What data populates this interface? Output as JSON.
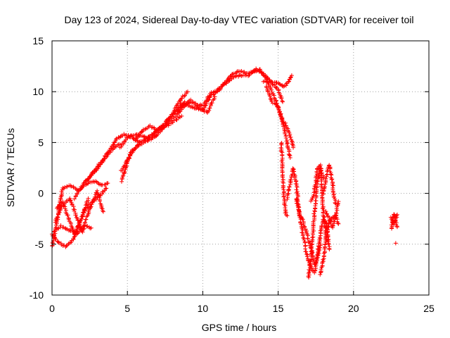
{
  "chart_data": {
    "type": "scatter",
    "title": "Day 123 of 2024, Sidereal Day-to-day VTEC variation (SDTVAR) for receiver toil",
    "xlabel": "GPS time / hours",
    "ylabel": "SDTVAR / TECUs",
    "xlim": [
      0,
      25
    ],
    "ylim": [
      -10,
      15
    ],
    "x_ticks": [
      "0",
      "5",
      "10",
      "15",
      "20",
      "25"
    ],
    "y_ticks": [
      "-10",
      "-5",
      "0",
      "5",
      "10",
      "15"
    ],
    "grid": true,
    "marker": "+",
    "color": "#ff0000",
    "traces": [
      {
        "x": [
          0.0,
          0.3,
          0.7,
          1.2,
          1.8,
          2.3,
          2.8,
          3.3,
          3.7
        ],
        "y": [
          -5.2,
          -3.0,
          0.5,
          0.8,
          0.3,
          1.0,
          1.2,
          0.8,
          1.0
        ]
      },
      {
        "x": [
          0.0,
          0.4,
          0.9,
          1.4,
          1.8,
          2.2,
          2.7,
          3.2,
          3.6
        ],
        "y": [
          -4.0,
          -4.8,
          -5.2,
          -4.6,
          -3.0,
          -1.5,
          -0.8,
          -0.2,
          0.5
        ]
      },
      {
        "x": [
          0.1,
          0.6,
          1.1,
          1.6,
          2.1,
          2.6
        ],
        "y": [
          -3.8,
          -3.2,
          -3.6,
          -4.0,
          -3.2,
          -3.4
        ]
      },
      {
        "x": [
          0.2,
          0.7,
          1.2,
          1.6,
          2.0,
          2.5,
          3.0,
          3.4
        ],
        "y": [
          -2.8,
          -1.2,
          -0.5,
          -2.2,
          -3.8,
          -1.5,
          0.2,
          -1.8
        ]
      },
      {
        "x": [
          0.3,
          0.7,
          1.1,
          1.5,
          2.0,
          2.4
        ],
        "y": [
          -1.5,
          -0.8,
          -2.5,
          -4.0,
          -2.2,
          -0.5
        ]
      },
      {
        "x": [
          1.5,
          2.0,
          2.6,
          3.1,
          3.6,
          4.0,
          4.3,
          4.8,
          5.3,
          5.8
        ],
        "y": [
          -0.5,
          0.8,
          1.8,
          2.8,
          3.8,
          4.6,
          5.4,
          5.8,
          5.5,
          5.0
        ]
      },
      {
        "x": [
          2.2,
          2.8,
          3.3,
          3.8,
          4.2,
          4.5
        ],
        "y": [
          1.2,
          2.0,
          3.0,
          4.0,
          4.6,
          4.8
        ]
      },
      {
        "x": [
          4.5,
          5.0,
          5.5,
          6.0,
          6.5,
          7.0
        ],
        "y": [
          4.5,
          5.5,
          5.8,
          5.6,
          5.4,
          5.8
        ]
      },
      {
        "x": [
          4.6,
          5.2,
          5.8,
          6.4,
          7.0,
          7.6,
          8.2,
          8.8,
          9.2
        ],
        "y": [
          1.2,
          4.0,
          4.8,
          5.2,
          5.8,
          6.8,
          7.6,
          8.6,
          9.2
        ]
      },
      {
        "x": [
          4.6,
          5.2,
          5.8,
          6.3,
          6.8,
          7.3,
          7.8,
          8.3,
          8.8
        ],
        "y": [
          2.2,
          3.8,
          5.0,
          5.4,
          6.0,
          6.6,
          7.4,
          8.2,
          9.0
        ]
      },
      {
        "x": [
          5.5,
          6.0,
          6.5,
          7.0,
          7.5,
          8.0,
          8.5,
          9.0
        ],
        "y": [
          5.2,
          6.2,
          6.6,
          6.2,
          6.8,
          7.8,
          9.2,
          10.0
        ]
      },
      {
        "x": [
          6.3,
          6.8,
          7.3,
          7.8,
          8.2,
          8.6
        ],
        "y": [
          5.4,
          6.0,
          6.4,
          6.8,
          7.2,
          7.6
        ]
      },
      {
        "x": [
          8.5,
          9.0,
          9.5,
          10.0,
          10.5,
          11.0,
          11.5,
          12.0,
          12.5,
          13.0,
          13.5,
          13.8
        ],
        "y": [
          8.8,
          8.6,
          8.4,
          8.2,
          9.6,
          10.0,
          11.0,
          11.8,
          12.0,
          11.8,
          12.0,
          12.2
        ]
      },
      {
        "x": [
          8.3,
          8.8,
          9.3,
          9.8,
          10.3,
          10.8
        ],
        "y": [
          8.0,
          8.8,
          9.0,
          8.4,
          7.9,
          9.5
        ]
      },
      {
        "x": [
          9.5,
          10.0,
          10.5,
          11.0,
          11.5,
          12.0,
          12.5,
          13.0,
          13.5,
          14.0,
          14.5,
          15.0,
          15.3
        ],
        "y": [
          8.8,
          8.6,
          9.8,
          10.2,
          10.8,
          11.4,
          11.6,
          11.6,
          12.2,
          11.8,
          11.0,
          10.2,
          9.0
        ]
      },
      {
        "x": [
          13.8,
          14.2,
          14.6,
          15.0,
          15.3,
          15.6,
          15.8
        ],
        "y": [
          12.0,
          11.4,
          10.0,
          8.5,
          7.0,
          5.0,
          3.5
        ]
      },
      {
        "x": [
          14.2,
          14.6,
          15.0,
          15.3,
          15.6,
          15.9,
          16.0
        ],
        "y": [
          10.5,
          9.0,
          8.5,
          7.2,
          6.5,
          5.2,
          4.5
        ]
      },
      {
        "x": [
          14.0,
          14.5,
          15.0,
          15.3,
          15.5,
          15.7,
          15.9
        ],
        "y": [
          11.0,
          11.0,
          10.8,
          10.5,
          10.6,
          11.0,
          11.6
        ]
      },
      {
        "x": [
          15.2,
          15.3,
          15.4,
          15.5,
          15.6
        ],
        "y": [
          5.0,
          2.0,
          -0.5,
          -2.0,
          -2.2
        ]
      },
      {
        "x": [
          15.6,
          15.8,
          16.0,
          16.2,
          16.4,
          16.6,
          16.8
        ],
        "y": [
          -0.5,
          1.0,
          2.5,
          1.0,
          -2.0,
          -3.8,
          -5.2
        ]
      },
      {
        "x": [
          16.2,
          16.4,
          16.6,
          16.8,
          17.0,
          17.2,
          17.4,
          17.6,
          17.8
        ],
        "y": [
          -0.5,
          -2.0,
          -2.5,
          -3.5,
          -4.5,
          -5.5,
          -7.0,
          -6.5,
          -5.0
        ]
      },
      {
        "x": [
          16.8,
          17.0,
          17.2,
          17.4,
          17.6,
          17.8,
          18.0,
          18.2,
          18.4
        ],
        "y": [
          -5.5,
          -6.5,
          -7.5,
          -7.8,
          -6.0,
          -4.0,
          -2.5,
          -3.0,
          -5.5
        ]
      },
      {
        "x": [
          17.0,
          17.2,
          17.4,
          17.6,
          17.8,
          18.0
        ],
        "y": [
          -8.3,
          -6.0,
          -2.0,
          1.0,
          2.5,
          1.5
        ]
      },
      {
        "x": [
          17.2,
          17.4,
          17.6,
          17.8,
          18.0,
          18.2
        ],
        "y": [
          -0.8,
          0.2,
          2.5,
          2.8,
          -2.0,
          -4.5
        ]
      },
      {
        "x": [
          17.8,
          18.0,
          18.2,
          18.4,
          18.6,
          18.8,
          19.0
        ],
        "y": [
          -8.0,
          -6.5,
          -4.2,
          -2.8,
          -2.4,
          -2.2,
          -3.0
        ]
      },
      {
        "x": [
          18.0,
          18.2,
          18.4,
          18.6,
          18.8
        ],
        "y": [
          0.0,
          1.8,
          2.8,
          1.0,
          -1.0
        ]
      },
      {
        "x": [
          18.2,
          18.4,
          18.6,
          18.8,
          19.0
        ],
        "y": [
          -1.8,
          -2.6,
          -3.4,
          -2.4,
          -0.8
        ]
      },
      {
        "x": [
          22.5,
          22.6,
          22.7,
          22.8,
          22.9
        ],
        "y": [
          -3.5,
          -2.5,
          -2.0,
          -2.8,
          -3.3
        ]
      },
      {
        "x": [
          22.5,
          22.7,
          22.9
        ],
        "y": [
          -2.4,
          -3.0,
          -2.1
        ]
      }
    ],
    "isolated_points": [
      {
        "x": 22.8,
        "y": -4.9
      }
    ]
  }
}
